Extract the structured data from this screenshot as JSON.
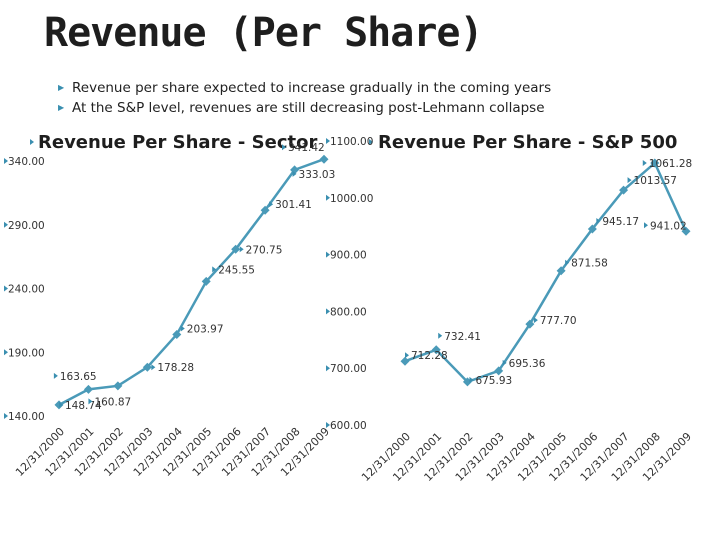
{
  "slide": {
    "title": "Revenue (Per Share)",
    "bullets": [
      "Revenue per share expected to increase gradually in the coming years",
      "At the S&P level, revenues are still decreasing post-Lehmann collapse"
    ]
  },
  "colors": {
    "series": "#4a9ab8",
    "bullet": "#3a8fb0"
  },
  "chart_data": [
    {
      "type": "line",
      "title": "Revenue Per Share - Sector",
      "x": [
        "12/31/2000",
        "12/31/2001",
        "12/31/2002",
        "12/31/2003",
        "12/31/2004",
        "12/31/2005",
        "12/31/2006",
        "12/31/2007",
        "12/31/2008",
        "12/31/2009"
      ],
      "values": [
        148.74,
        160.87,
        163.65,
        178.28,
        203.97,
        245.55,
        270.75,
        301.41,
        333.03,
        341.42
      ],
      "labels": [
        "148.74",
        "160.87",
        "163.65",
        "178.28",
        "203.97",
        "245.55",
        "270.75",
        "301.41",
        "333.03",
        "341.42"
      ],
      "yticks": [
        "140.00",
        "190.00",
        "240.00",
        "290.00",
        "340.00"
      ],
      "ylim": [
        140,
        340
      ],
      "grid": false,
      "legend": "none"
    },
    {
      "type": "line",
      "title": "Revenue Per Share - S&P 500",
      "x": [
        "12/31/2000",
        "12/31/2001",
        "12/31/2002",
        "12/31/2003",
        "12/31/2004",
        "12/31/2005",
        "12/31/2006",
        "12/31/2007",
        "12/31/2008",
        "12/31/2009"
      ],
      "values": [
        712.28,
        732.41,
        675.93,
        695.36,
        777.7,
        871.58,
        945.17,
        1013.57,
        1061.28,
        941.02
      ],
      "labels": [
        "712.28",
        "732.41",
        "675.93",
        "695.36",
        "777.70",
        "871.58",
        "945.17",
        "1013.57",
        "1061.28",
        "941.02"
      ],
      "yticks": [
        "600.00",
        "700.00",
        "800.00",
        "900.00",
        "1000.00",
        "1100.00"
      ],
      "ylim": [
        600,
        1100
      ],
      "grid": false,
      "legend": "none"
    }
  ]
}
